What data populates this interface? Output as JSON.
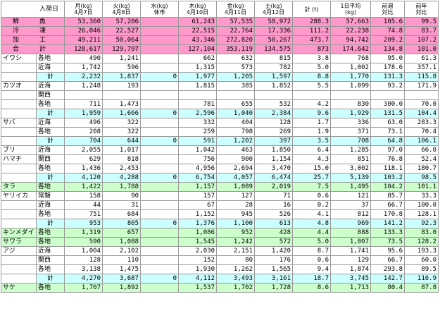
{
  "header": {
    "corner": "入荷日",
    "columns": [
      {
        "day": "月(kg)",
        "date": "4月7日"
      },
      {
        "day": "火(kg)",
        "date": "4月8日"
      },
      {
        "day": "水(kg)",
        "date": "休市"
      },
      {
        "day": "木(kg)",
        "date": "4月10日"
      },
      {
        "day": "金(kg)",
        "date": "4月11日"
      },
      {
        "day": "土(kg)",
        "date": "4月12日"
      },
      {
        "day": "計 (t)",
        "date": ""
      },
      {
        "day": "1日平均",
        "date": "(kg)"
      },
      {
        "day": "前週",
        "date": "対比"
      },
      {
        "day": "前年",
        "date": "対比"
      }
    ]
  },
  "summary": [
    {
      "label": "鮮　魚",
      "values": [
        "53,360",
        "57,206",
        "",
        "61,243",
        "57,535",
        "58,972",
        "288.3",
        "57,663",
        "105.6",
        "99.5"
      ]
    },
    {
      "label": "冷　凍",
      "values": [
        "26,046",
        "22,527",
        "",
        "22,515",
        "22,764",
        "17,336",
        "111.2",
        "22,238",
        "74.8",
        "83.7"
      ]
    },
    {
      "label": "加　工",
      "values": [
        "49,211",
        "50,064",
        "",
        "43,346",
        "272,820",
        "58,267",
        "473.7",
        "94,742",
        "209.2",
        "107.2"
      ]
    },
    {
      "label": "合　計",
      "values": [
        "128,617",
        "129,797",
        "",
        "127,104",
        "353,119",
        "134,575",
        "873",
        "174,642",
        "134.8",
        "101.0"
      ]
    }
  ],
  "rows": [
    {
      "fish": "イワシ",
      "region": "各地",
      "bg": "bg-white",
      "values": [
        "490",
        "1,241",
        "",
        "662",
        "632",
        "815",
        "3.8",
        "768",
        "95.0",
        "61.3"
      ]
    },
    {
      "fish": "",
      "region": "近海",
      "bg": "bg-white",
      "values": [
        "1,742",
        "596",
        "",
        "1,315",
        "573",
        "782",
        "5.0",
        "1,002",
        "178.6",
        "357.1"
      ]
    },
    {
      "fish": "",
      "region": "計",
      "total": true,
      "bg": "bg-cyan",
      "values": [
        "2,232",
        "1,837",
        "0",
        "1,977",
        "1,205",
        "1,597",
        "8.8",
        "1,770",
        "131.3",
        "115.8"
      ]
    },
    {
      "fish": "カツオ",
      "region": "近海",
      "bg": "bg-white",
      "values": [
        "1,248",
        "193",
        "",
        "1,815",
        "385",
        "1,852",
        "5.5",
        "1,099",
        "93.2",
        "171.9"
      ]
    },
    {
      "fish": "",
      "region": "関西",
      "bg": "bg-white",
      "values": [
        "",
        "",
        "",
        "",
        "",
        "",
        "",
        "",
        "",
        ""
      ]
    },
    {
      "fish": "",
      "region": "各地",
      "bg": "bg-white",
      "values": [
        "711",
        "1,473",
        "",
        "781",
        "655",
        "532",
        "4.2",
        "830",
        "300.0",
        "70.0"
      ]
    },
    {
      "fish": "",
      "region": "計",
      "total": true,
      "bg": "bg-cyan",
      "values": [
        "1,959",
        "1,666",
        "0",
        "2,596",
        "1,040",
        "2,384",
        "9.6",
        "1,929",
        "131.5",
        "104.4"
      ]
    },
    {
      "fish": "サバ",
      "region": "近海",
      "bg": "bg-white",
      "values": [
        "496",
        "322",
        "",
        "332",
        "404",
        "128",
        "1.7",
        "336",
        "63.0",
        "283.3"
      ]
    },
    {
      "fish": "",
      "region": "各地",
      "bg": "bg-white",
      "values": [
        "208",
        "322",
        "",
        "259",
        "798",
        "269",
        "1.9",
        "371",
        "73.1",
        "70.4"
      ]
    },
    {
      "fish": "",
      "region": "計",
      "total": true,
      "bg": "bg-cyan",
      "values": [
        "704",
        "644",
        "0",
        "591",
        "1,202",
        "397",
        "3.5",
        "708",
        "64.8",
        "106.1"
      ]
    },
    {
      "fish": "ブリ",
      "region": "近海",
      "bg": "bg-white",
      "values": [
        "2,055",
        "1,017",
        "",
        "1,042",
        "463",
        "1,850",
        "6.4",
        "1,285",
        "97.0",
        "66.0"
      ]
    },
    {
      "fish": "ハマチ",
      "region": "関西",
      "bg": "bg-white",
      "values": [
        "629",
        "818",
        "",
        "756",
        "900",
        "1,154",
        "4.3",
        "851",
        "76.8",
        "52.4"
      ]
    },
    {
      "fish": "",
      "region": "各地",
      "bg": "bg-white",
      "values": [
        "1,436",
        "2,453",
        "",
        "4,956",
        "2,694",
        "3,470",
        "15.0",
        "3,002",
        "118.1",
        "180.7"
      ]
    },
    {
      "fish": "",
      "region": "計",
      "total": true,
      "bg": "bg-cyan",
      "values": [
        "4,120",
        "4,288",
        "0",
        "6,754",
        "4,057",
        "6,474",
        "25.7",
        "5,139",
        "103.2",
        "98.5"
      ]
    },
    {
      "fish": "タラ",
      "region": "各地",
      "bg": "bg-green",
      "values": [
        "1,422",
        "1,788",
        "",
        "1,157",
        "1,089",
        "2,019",
        "7.5",
        "1,495",
        "104.2",
        "101.1"
      ]
    },
    {
      "fish": "ヤリイカ",
      "region": "常磐",
      "bg": "bg-white",
      "values": [
        "158",
        "90",
        "",
        "157",
        "127",
        "71",
        "0.6",
        "121",
        "85.7",
        "33.3"
      ]
    },
    {
      "fish": "",
      "region": "近海",
      "bg": "bg-white",
      "values": [
        "44",
        "31",
        "",
        "67",
        "28",
        "16",
        "0.2",
        "37",
        "66.7",
        "100.0"
      ]
    },
    {
      "fish": "",
      "region": "各地",
      "bg": "bg-white",
      "values": [
        "751",
        "684",
        "",
        "1,152",
        "945",
        "526",
        "4.1",
        "812",
        "170.8",
        "128.1"
      ]
    },
    {
      "fish": "",
      "region": "計",
      "total": true,
      "bg": "bg-cyan",
      "values": [
        "953",
        "805",
        "0",
        "1,376",
        "1,100",
        "613",
        "4.8",
        "969",
        "141.2",
        "92.3"
      ]
    },
    {
      "fish": "キンメダイ",
      "region": "各地",
      "bg": "bg-green",
      "values": [
        "1,319",
        "657",
        "",
        "1,086",
        "952",
        "428",
        "4.4",
        "888",
        "133.3",
        "83.0"
      ]
    },
    {
      "fish": "サワラ",
      "region": "各地",
      "bg": "bg-green",
      "values": [
        "590",
        "1,088",
        "",
        "1,545",
        "1,242",
        "572",
        "5.0",
        "1,007",
        "73.5",
        "128.2"
      ]
    },
    {
      "fish": "アジ",
      "region": "近海",
      "bg": "bg-white",
      "values": [
        "1,004",
        "2,102",
        "",
        "2,030",
        "2,151",
        "1,420",
        "8.7",
        "1,741",
        "95.6",
        "193.3"
      ]
    },
    {
      "fish": "",
      "region": "関西",
      "bg": "bg-white",
      "values": [
        "128",
        "110",
        "",
        "152",
        "80",
        "176",
        "0.6",
        "129",
        "66.7",
        "60.0"
      ]
    },
    {
      "fish": "",
      "region": "各地",
      "bg": "bg-white",
      "values": [
        "3,138",
        "1,475",
        "",
        "1,930",
        "1,262",
        "1,565",
        "9.4",
        "1,874",
        "293.8",
        "89.5"
      ]
    },
    {
      "fish": "",
      "region": "計",
      "total": true,
      "bg": "bg-cyan",
      "values": [
        "4,270",
        "3,687",
        "0",
        "4,112",
        "3,493",
        "3,161",
        "18.7",
        "3,745",
        "142.7",
        "116.9"
      ]
    },
    {
      "fish": "サケ",
      "region": "各地",
      "bg": "bg-green",
      "values": [
        "1,707",
        "1,892",
        "",
        "1,537",
        "1,702",
        "1,728",
        "8.6",
        "1,713",
        "80.4",
        "87.8"
      ]
    }
  ]
}
